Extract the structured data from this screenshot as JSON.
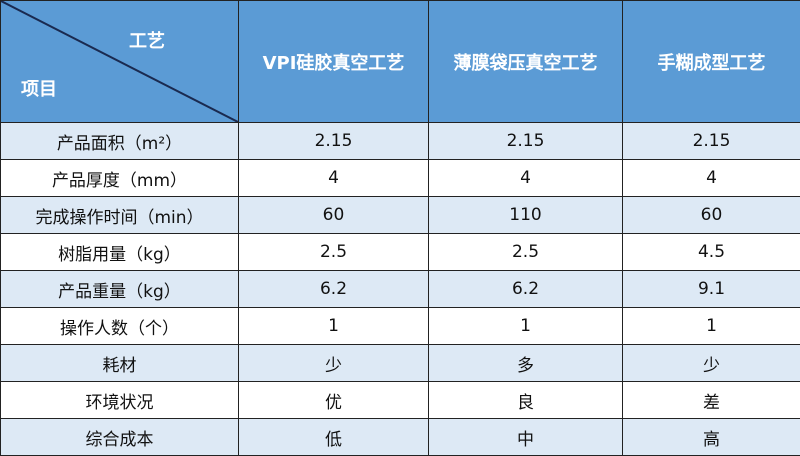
{
  "header": {
    "corner_top": "工艺",
    "corner_bottom": "项目",
    "columns": [
      "VPI硅胶真空工艺",
      "薄膜袋压真空工艺",
      "手糊成型工艺"
    ]
  },
  "rows": [
    {
      "label": "产品面积（m²）",
      "values": [
        "2.15",
        "2.15",
        "2.15"
      ]
    },
    {
      "label": "产品厚度（mm）",
      "values": [
        "4",
        "4",
        "4"
      ]
    },
    {
      "label": "完成操作时间（min）",
      "values": [
        "60",
        "110",
        "60"
      ]
    },
    {
      "label": "树脂用量（kg）",
      "values": [
        "2.5",
        "2.5",
        "4.5"
      ]
    },
    {
      "label": "产品重量（kg）",
      "values": [
        "6.2",
        "6.2",
        "9.1"
      ]
    },
    {
      "label": "操作人数（个）",
      "values": [
        "1",
        "1",
        "1"
      ]
    },
    {
      "label": "耗材",
      "values": [
        "少",
        "多",
        "少"
      ]
    },
    {
      "label": "环境状况",
      "values": [
        "优",
        "良",
        "差"
      ]
    },
    {
      "label": "综合成本",
      "values": [
        "低",
        "中",
        "高"
      ]
    }
  ],
  "colors": {
    "header_bg": "#5b9bd5",
    "stripe_bg": "#dde9f5"
  }
}
